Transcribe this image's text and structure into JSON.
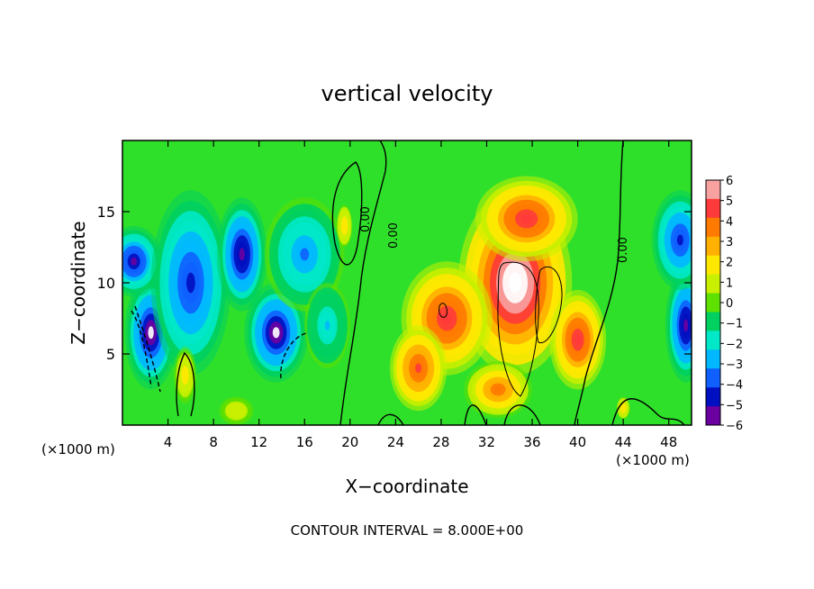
{
  "chart_data": {
    "type": "heatmap",
    "title": "vertical velocity",
    "xlabel": "X−coordinate",
    "ylabel": "Z−coordinate",
    "x_unit_label_left": "(×1000 m)",
    "x_unit_label_right": "(×1000 m)",
    "x_ticks": [
      4,
      8,
      12,
      16,
      20,
      24,
      28,
      32,
      36,
      40,
      44,
      48
    ],
    "y_ticks": [
      5,
      10,
      15
    ],
    "xlim": [
      0,
      50
    ],
    "ylim": [
      0,
      20
    ],
    "colorbar": {
      "ticks": [
        6,
        5,
        4,
        3,
        2,
        1,
        0,
        -1,
        -2,
        -3,
        -4,
        -5,
        -6
      ],
      "tick_labels": [
        "6",
        "5",
        "4",
        "3",
        "2",
        "1",
        "0",
        "−1",
        "−2",
        "−3",
        "−4",
        "−5",
        "−6"
      ],
      "range": [
        -6,
        6
      ],
      "colors": [
        "#f7a1a1",
        "#ff3a3a",
        "#ff7a00",
        "#ffb000",
        "#ffe800",
        "#c8f000",
        "#5ee000",
        "#00d060",
        "#00e8c8",
        "#00b8ff",
        "#1060ff",
        "#0010c0",
        "#6a00a0"
      ]
    },
    "contour_labels": [
      "0.00",
      "0.00",
      "0.00"
    ],
    "contour_interval_text": "CONTOUR INTERVAL = 8.000E+00",
    "blobs": [
      {
        "x": 2.5,
        "z": 6.5,
        "rx": 2.3,
        "rz": 4.0,
        "w": -6.2
      },
      {
        "x": 1.0,
        "z": 11.5,
        "rx": 2.5,
        "rz": 2.5,
        "w": -5.5
      },
      {
        "x": 6.0,
        "z": 10.0,
        "rx": 3.5,
        "rz": 6.5,
        "w": -5.0
      },
      {
        "x": 10.5,
        "z": 12.0,
        "rx": 2.2,
        "rz": 4.0,
        "w": -5.8
      },
      {
        "x": 13.5,
        "z": 6.5,
        "rx": 2.8,
        "rz": 3.5,
        "w": -6.2
      },
      {
        "x": 16.0,
        "z": 12.0,
        "rx": 3.5,
        "rz": 4.0,
        "w": -3.5
      },
      {
        "x": 18.0,
        "z": 7.0,
        "rx": 2.0,
        "rz": 3.0,
        "w": -2.5
      },
      {
        "x": 5.5,
        "z": 3.5,
        "rx": 1.0,
        "rz": 2.0,
        "w": 2.0
      },
      {
        "x": 19.5,
        "z": 14.0,
        "rx": 0.7,
        "rz": 1.5,
        "w": 2.5
      },
      {
        "x": 10.0,
        "z": 1.0,
        "rx": 1.5,
        "rz": 1.0,
        "w": 1.2
      },
      {
        "x": 34.5,
        "z": 10.0,
        "rx": 5.0,
        "rz": 6.5,
        "w": 7.5
      },
      {
        "x": 35.5,
        "z": 14.5,
        "rx": 4.5,
        "rz": 3.0,
        "w": 5.5
      },
      {
        "x": 28.5,
        "z": 7.5,
        "rx": 4.0,
        "rz": 4.0,
        "w": 5.5
      },
      {
        "x": 26.0,
        "z": 4.0,
        "rx": 2.5,
        "rz": 3.0,
        "w": 5.0
      },
      {
        "x": 40.0,
        "z": 6.0,
        "rx": 2.5,
        "rz": 3.5,
        "w": 5.5
      },
      {
        "x": 33.0,
        "z": 2.5,
        "rx": 3.0,
        "rz": 2.0,
        "w": 4.0
      },
      {
        "x": 44.0,
        "z": 1.2,
        "rx": 0.6,
        "rz": 0.8,
        "w": 2.5
      },
      {
        "x": 49.5,
        "z": 7.0,
        "rx": 1.8,
        "rz": 4.0,
        "w": -6.0
      },
      {
        "x": 49.0,
        "z": 13.0,
        "rx": 2.5,
        "rz": 3.5,
        "w": -4.5
      }
    ]
  }
}
